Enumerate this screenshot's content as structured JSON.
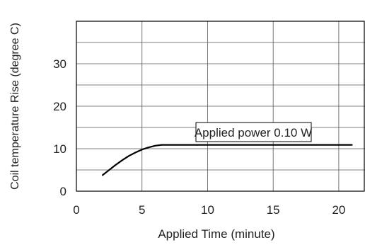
{
  "chart_data": {
    "type": "line",
    "title": "",
    "xlabel": "Applied Time (minute)",
    "ylabel": "Coil temperature Rise (degree C)",
    "xlim": [
      0,
      22
    ],
    "ylim": [
      0,
      40
    ],
    "x_ticks": [
      0,
      5,
      10,
      15,
      20
    ],
    "x_tick_labels": [
      "0",
      "5",
      "10",
      "15",
      "20"
    ],
    "y_ticks": [
      0,
      10,
      20,
      30
    ],
    "y_tick_labels": [
      "0",
      "10",
      "20",
      "30"
    ],
    "grid": true,
    "annotation": "Applied power 0.10 W",
    "series": [
      {
        "name": "",
        "color": "#000000",
        "x": [
          2.0,
          2.5,
          3.0,
          3.5,
          4.0,
          4.5,
          5.0,
          5.5,
          6.0,
          6.5,
          8.0,
          10.0,
          12.0,
          15.0,
          18.0,
          21.0
        ],
        "y": [
          3.8,
          5.0,
          6.2,
          7.3,
          8.3,
          9.1,
          9.8,
          10.3,
          10.7,
          10.9,
          10.9,
          10.9,
          10.9,
          10.9,
          10.9,
          10.9
        ]
      }
    ]
  }
}
